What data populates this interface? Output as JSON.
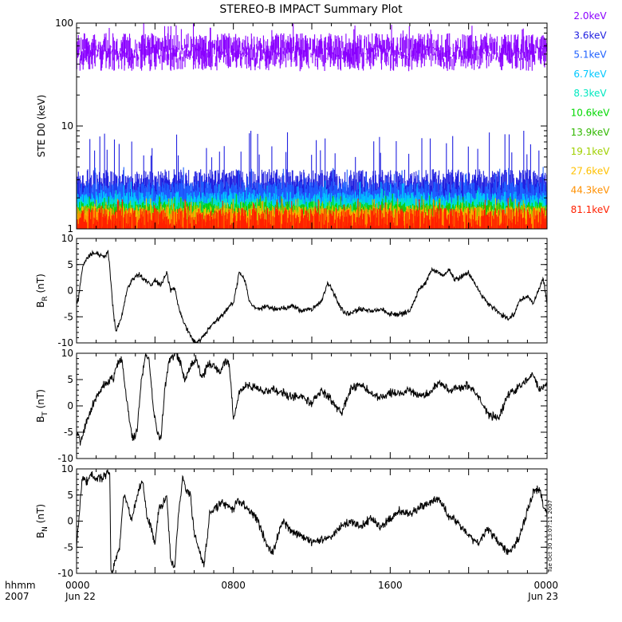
{
  "title": "STEREO-B IMPACT Summary Plot",
  "timestamp_label": "Tue Oct 30 13:07:11 2007",
  "x_axis": {
    "row1_label": "hhmm",
    "row2_label": "2007",
    "range_hours": [
      0,
      24
    ],
    "ticks": [
      {
        "hour": 0,
        "time": "0000",
        "date": "Jun 22"
      },
      {
        "hour": 8,
        "time": "0800",
        "date": ""
      },
      {
        "hour": 16,
        "time": "1600",
        "date": ""
      },
      {
        "hour": 24,
        "time": "0000",
        "date": "Jun 23"
      }
    ]
  },
  "chart_data": [
    {
      "type": "line",
      "panel": "electron-flux",
      "ylabel": "STE D0 (keV)",
      "yscale": "log",
      "ylim": [
        1,
        100
      ],
      "y_ticks": [
        {
          "value": 1,
          "label": "1"
        },
        {
          "value": 10,
          "label": "10"
        },
        {
          "value": 100,
          "label": "100"
        }
      ],
      "legend_position": "right",
      "series": [
        {
          "name": "2.0keV",
          "color": "#8a00ff",
          "baseline": 62,
          "spread": 18,
          "low": 38,
          "high": 100
        },
        {
          "name": "3.6keV",
          "color": "#2020e0",
          "baseline": 3.0,
          "spread": 0.8,
          "low": 2.0,
          "high": 9.0
        },
        {
          "name": "5.1keV",
          "color": "#1e60ff",
          "baseline": 2.4,
          "spread": 0.5,
          "low": 1.7,
          "high": 4.0
        },
        {
          "name": "6.7keV",
          "color": "#00c8ff",
          "baseline": 1.9,
          "spread": 0.4,
          "low": 1.3,
          "high": 3.0
        },
        {
          "name": "8.3keV",
          "color": "#00e8c0",
          "baseline": 1.7,
          "spread": 0.3,
          "low": 1.2,
          "high": 2.5
        },
        {
          "name": "10.6keV",
          "color": "#00d800",
          "baseline": 1.55,
          "spread": 0.3,
          "low": 1.1,
          "high": 2.2
        },
        {
          "name": "13.9keV",
          "color": "#30b800",
          "baseline": 1.45,
          "spread": 0.3,
          "low": 1.1,
          "high": 2.1
        },
        {
          "name": "19.1keV",
          "color": "#a0d000",
          "baseline": 1.4,
          "spread": 0.3,
          "low": 1.05,
          "high": 2.0
        },
        {
          "name": "27.6keV",
          "color": "#ffc000",
          "baseline": 1.35,
          "spread": 0.3,
          "low": 1.05,
          "high": 2.0
        },
        {
          "name": "44.3keV",
          "color": "#ff9000",
          "baseline": 1.3,
          "spread": 0.3,
          "low": 1.0,
          "high": 2.0
        },
        {
          "name": "81.1keV",
          "color": "#ff2000",
          "baseline": 1.25,
          "spread": 0.35,
          "low": 1.0,
          "high": 2.0
        }
      ]
    },
    {
      "type": "line",
      "panel": "b-radial",
      "ylabel": "B",
      "ylabel_sub": "R",
      "ylabel_unit": "(nT)",
      "ylim": [
        -10,
        10
      ],
      "y_ticks": [
        {
          "value": 10,
          "label": "10"
        },
        {
          "value": 5,
          "label": "5"
        },
        {
          "value": 0,
          "label": "0"
        },
        {
          "value": -5,
          "label": "-5"
        },
        {
          "value": -10,
          "label": "-10"
        }
      ],
      "noise": 0.6,
      "x": [
        0,
        0.1,
        0.3,
        0.5,
        0.8,
        1.1,
        1.4,
        1.6,
        1.7,
        1.85,
        2.0,
        2.3,
        2.6,
        2.9,
        3.2,
        3.5,
        3.8,
        4.0,
        4.3,
        4.6,
        4.8,
        5.0,
        5.2,
        5.5,
        5.8,
        6.0,
        6.3,
        6.6,
        6.9,
        7.2,
        7.5,
        7.8,
        8.0,
        8.3,
        8.6,
        8.8,
        9.0,
        9.3,
        9.6,
        10.0,
        10.5,
        11.0,
        11.5,
        12.0,
        12.5,
        12.8,
        13.0,
        13.3,
        13.6,
        13.9,
        14.2,
        14.5,
        15.0,
        15.5,
        16.0,
        16.5,
        17.0,
        17.5,
        17.8,
        18.1,
        18.4,
        18.7,
        19.0,
        19.3,
        19.6,
        20.0,
        20.3,
        20.6,
        21.0,
        21.5,
        22.0,
        22.3,
        22.6,
        23.0,
        23.3,
        23.5,
        23.8,
        24.0
      ],
      "values": [
        -2.5,
        -1.5,
        4.5,
        6.0,
        7.2,
        7.0,
        6.5,
        7.5,
        4.0,
        -3.0,
        -8.0,
        -5.0,
        0.5,
        2.5,
        3.0,
        2.0,
        1.0,
        2.0,
        1.0,
        3.5,
        0.0,
        0.5,
        -3.0,
        -6.5,
        -8.5,
        -10.0,
        -9.5,
        -8.0,
        -6.5,
        -5.5,
        -4.5,
        -3.0,
        -2.5,
        3.5,
        2.0,
        -2.0,
        -3.0,
        -3.5,
        -3.0,
        -3.5,
        -3.5,
        -3.0,
        -4.0,
        -3.5,
        -2.0,
        1.5,
        0.5,
        -2.0,
        -4.0,
        -4.5,
        -4.0,
        -3.5,
        -4.0,
        -3.5,
        -4.5,
        -4.5,
        -4.0,
        0.5,
        1.5,
        4.0,
        3.5,
        3.0,
        4.0,
        2.0,
        2.5,
        3.5,
        1.5,
        -0.5,
        -2.5,
        -4.0,
        -5.5,
        -4.5,
        -2.0,
        -1.0,
        -2.5,
        -0.5,
        2.5,
        -2.5
      ]
    },
    {
      "type": "line",
      "panel": "b-tangential",
      "ylabel": "B",
      "ylabel_sub": "T",
      "ylabel_unit": "(nT)",
      "ylim": [
        -10,
        10
      ],
      "y_ticks": [
        {
          "value": 10,
          "label": "10"
        },
        {
          "value": 5,
          "label": "5"
        },
        {
          "value": 0,
          "label": "0"
        },
        {
          "value": -5,
          "label": "-5"
        },
        {
          "value": -10,
          "label": "-10"
        }
      ],
      "noise": 1.0,
      "x": [
        0,
        0.2,
        0.4,
        0.7,
        1.0,
        1.3,
        1.6,
        1.9,
        2.1,
        2.3,
        2.5,
        2.7,
        2.9,
        3.1,
        3.3,
        3.5,
        3.7,
        3.9,
        4.1,
        4.3,
        4.5,
        4.7,
        4.9,
        5.1,
        5.3,
        5.5,
        5.8,
        6.1,
        6.4,
        6.7,
        7.0,
        7.3,
        7.6,
        7.8,
        8.0,
        8.3,
        8.6,
        9.0,
        9.5,
        10.0,
        10.5,
        11.0,
        11.5,
        12.0,
        12.5,
        13.0,
        13.5,
        14.0,
        14.5,
        15.0,
        15.5,
        16.0,
        16.5,
        17.0,
        17.5,
        18.0,
        18.5,
        19.0,
        19.5,
        20.0,
        20.5,
        21.0,
        21.5,
        22.0,
        22.5,
        23.0,
        23.3,
        23.6,
        24.0
      ],
      "values": [
        -5.0,
        -7.0,
        -4.5,
        -1.0,
        1.5,
        3.5,
        4.5,
        5.5,
        8.0,
        9.0,
        3.0,
        -3.0,
        -6.5,
        -4.0,
        4.5,
        9.5,
        9.0,
        0.0,
        -4.5,
        -6.5,
        3.0,
        8.5,
        9.5,
        10.0,
        8.0,
        5.0,
        7.5,
        9.0,
        5.0,
        8.0,
        7.5,
        6.5,
        8.5,
        8.0,
        -2.5,
        2.5,
        4.0,
        3.5,
        3.0,
        3.0,
        2.5,
        1.5,
        2.0,
        0.5,
        3.0,
        1.0,
        -1.5,
        3.5,
        4.0,
        2.5,
        1.5,
        2.5,
        2.5,
        3.0,
        2.0,
        2.5,
        4.5,
        3.0,
        3.5,
        4.0,
        1.5,
        -1.5,
        -2.5,
        2.0,
        3.5,
        5.0,
        6.0,
        3.0,
        4.0
      ]
    },
    {
      "type": "line",
      "panel": "b-normal",
      "ylabel": "B",
      "ylabel_sub": "N",
      "ylabel_unit": "(nT)",
      "ylim": [
        -10,
        10
      ],
      "y_ticks": [
        {
          "value": 10,
          "label": "10"
        },
        {
          "value": 5,
          "label": "5"
        },
        {
          "value": 0,
          "label": "0"
        },
        {
          "value": -5,
          "label": "-5"
        },
        {
          "value": -10,
          "label": "-10"
        }
      ],
      "noise": 1.0,
      "x": [
        0,
        0.15,
        0.3,
        0.5,
        0.8,
        1.1,
        1.4,
        1.7,
        1.75,
        1.8,
        2.0,
        2.2,
        2.4,
        2.6,
        2.8,
        3.0,
        3.2,
        3.4,
        3.6,
        3.8,
        4.0,
        4.2,
        4.4,
        4.6,
        4.8,
        5.0,
        5.2,
        5.4,
        5.6,
        5.8,
        6.0,
        6.2,
        6.5,
        6.8,
        7.1,
        7.4,
        7.7,
        8.0,
        8.2,
        8.4,
        8.8,
        9.2,
        9.6,
        10.0,
        10.5,
        11.0,
        11.5,
        12.0,
        12.5,
        13.0,
        13.5,
        14.0,
        14.5,
        15.0,
        15.5,
        16.0,
        16.5,
        17.0,
        17.5,
        18.0,
        18.5,
        19.0,
        19.5,
        20.0,
        20.5,
        21.0,
        21.5,
        22.0,
        22.3,
        22.6,
        23.0,
        23.3,
        23.6,
        24.0
      ],
      "values": [
        -5.0,
        2.0,
        8.5,
        7.5,
        9.0,
        8.0,
        8.5,
        9.5,
        -10.0,
        -10.0,
        -7.0,
        -5.0,
        5.0,
        3.5,
        0.0,
        3.5,
        6.5,
        7.5,
        0.5,
        -1.0,
        -4.5,
        2.5,
        3.0,
        5.5,
        -7.5,
        -9.0,
        1.0,
        8.0,
        6.0,
        5.0,
        -2.0,
        -5.0,
        -8.5,
        1.5,
        2.5,
        3.5,
        3.0,
        2.0,
        4.5,
        3.5,
        2.0,
        0.5,
        -3.5,
        -6.0,
        0.0,
        -2.0,
        -3.0,
        -4.0,
        -3.5,
        -3.0,
        -1.0,
        0.0,
        -1.0,
        0.5,
        -1.0,
        0.5,
        2.0,
        1.5,
        2.5,
        3.5,
        4.5,
        1.0,
        -0.5,
        -3.0,
        -4.0,
        -1.5,
        -4.0,
        -6.0,
        -5.0,
        -3.0,
        2.0,
        5.5,
        6.0,
        1.0
      ]
    }
  ]
}
